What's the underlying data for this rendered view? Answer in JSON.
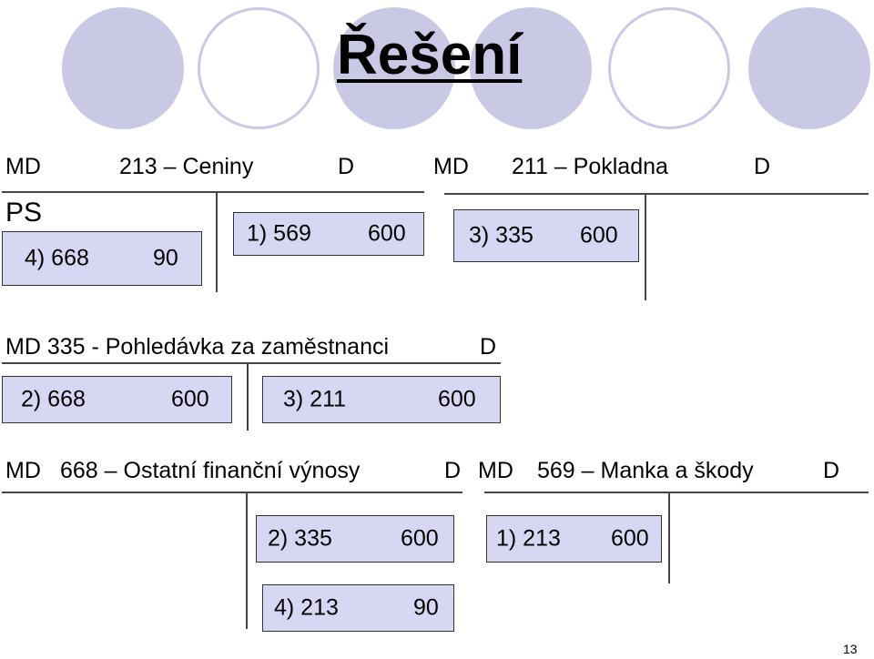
{
  "title": "Řešení",
  "accounts": {
    "a213": {
      "md": "MD",
      "name": "213 – Ceniny",
      "d": "D"
    },
    "a211": {
      "md": "MD",
      "name": "211 – Pokladna",
      "d": "D"
    },
    "a335": {
      "header": "MD 335 - Pohledávka za zaměstnanci",
      "d": "D"
    },
    "a668": {
      "md": "MD",
      "name": "668 – Ostatní finanční výnosy",
      "d": "D"
    },
    "a569": {
      "md": "MD",
      "name": "569 – Manka a škody",
      "d": "D"
    }
  },
  "ps_label": "PS",
  "entries": {
    "e213_md": {
      "ref": "4) 668",
      "amount": "90"
    },
    "e213_d": {
      "ref": "1)  569",
      "amount": "600"
    },
    "e211_md": {
      "ref": "3) 335",
      "amount": "600"
    },
    "e335_md": {
      "ref": "2) 668",
      "amount": "600"
    },
    "e335_d": {
      "ref": "3) 211",
      "amount": "600"
    },
    "e668_d1": {
      "ref": "2)  335",
      "amount": "600"
    },
    "e668_d2": {
      "ref": "4)  213",
      "amount": "90"
    },
    "e569_md": {
      "ref": "1)  213",
      "amount": "600"
    }
  },
  "page_number": "13",
  "colors": {
    "box_fill": "#d7d7f3",
    "circle": "#c9c9e6"
  }
}
